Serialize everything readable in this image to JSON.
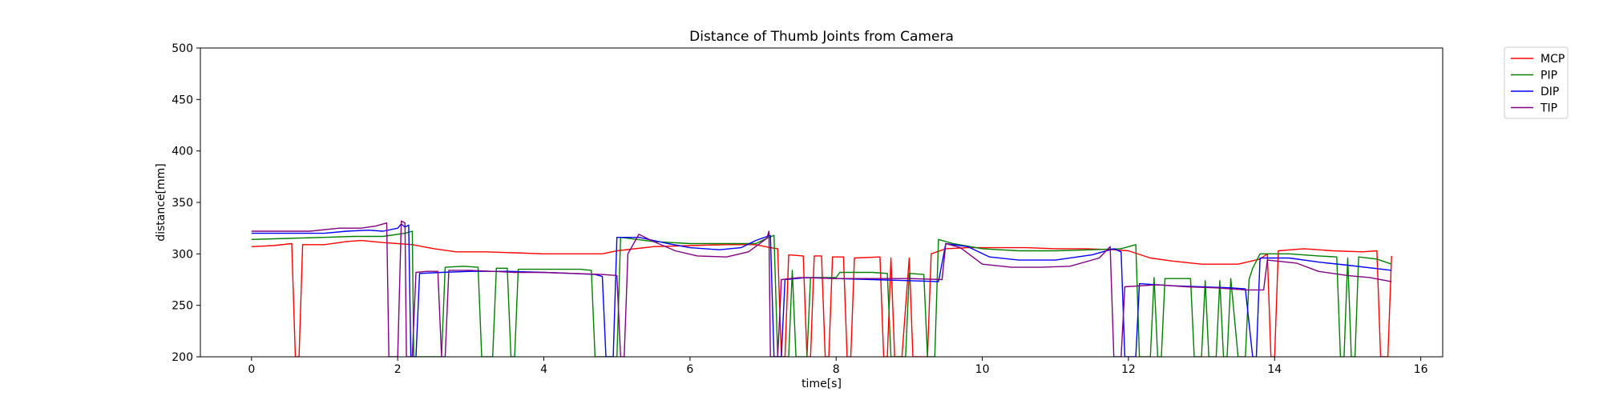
{
  "chart_data": {
    "type": "line",
    "title": "Distance of Thumb Joints from Camera",
    "xlabel": "time[s]",
    "ylabel": "distance[mm]",
    "xlim": [
      -0.7,
      16.3
    ],
    "ylim": [
      200,
      500
    ],
    "xticks": [
      0,
      2,
      4,
      6,
      8,
      10,
      12,
      14,
      16
    ],
    "yticks": [
      200,
      250,
      300,
      350,
      400,
      450,
      500
    ],
    "grid": false,
    "legend_position": "outside-top-right",
    "series": [
      {
        "name": "MCP",
        "color": "#ff0000",
        "points": [
          [
            0,
            307
          ],
          [
            0.3,
            308
          ],
          [
            0.55,
            310
          ],
          [
            0.6,
            200
          ],
          [
            0.65,
            200
          ],
          [
            0.7,
            309
          ],
          [
            1.0,
            309
          ],
          [
            1.3,
            312
          ],
          [
            1.5,
            313
          ],
          [
            1.8,
            311
          ],
          [
            2.0,
            310
          ],
          [
            2.2,
            309
          ],
          [
            2.5,
            305
          ],
          [
            2.8,
            302
          ],
          [
            3.2,
            302
          ],
          [
            3.6,
            301
          ],
          [
            4.0,
            300
          ],
          [
            4.4,
            300
          ],
          [
            4.8,
            300
          ],
          [
            5.0,
            303
          ],
          [
            5.5,
            307
          ],
          [
            6.0,
            308
          ],
          [
            6.5,
            309
          ],
          [
            6.9,
            309
          ],
          [
            7.1,
            306
          ],
          [
            7.2,
            305
          ],
          [
            7.25,
            200
          ],
          [
            7.3,
            200
          ],
          [
            7.35,
            299
          ],
          [
            7.55,
            298
          ],
          [
            7.6,
            200
          ],
          [
            7.65,
            200
          ],
          [
            7.7,
            298
          ],
          [
            7.8,
            298
          ],
          [
            7.85,
            200
          ],
          [
            7.9,
            200
          ],
          [
            7.95,
            297
          ],
          [
            8.1,
            297
          ],
          [
            8.15,
            200
          ],
          [
            8.2,
            200
          ],
          [
            8.25,
            296
          ],
          [
            8.6,
            297
          ],
          [
            8.65,
            200
          ],
          [
            8.7,
            200
          ],
          [
            8.75,
            296
          ],
          [
            8.8,
            200
          ],
          [
            8.9,
            200
          ],
          [
            9.0,
            296
          ],
          [
            9.05,
            200
          ],
          [
            9.25,
            200
          ],
          [
            9.3,
            300
          ],
          [
            9.5,
            305
          ],
          [
            9.8,
            306
          ],
          [
            10.2,
            306
          ],
          [
            10.6,
            306
          ],
          [
            11.0,
            305
          ],
          [
            11.4,
            305
          ],
          [
            11.8,
            304
          ],
          [
            12.0,
            303
          ],
          [
            12.3,
            296
          ],
          [
            12.6,
            293
          ],
          [
            13.0,
            290
          ],
          [
            13.5,
            290
          ],
          [
            13.8,
            295
          ],
          [
            13.9,
            300
          ],
          [
            13.95,
            200
          ],
          [
            14.0,
            200
          ],
          [
            14.05,
            303
          ],
          [
            14.4,
            305
          ],
          [
            14.8,
            303
          ],
          [
            15.2,
            302
          ],
          [
            15.4,
            303
          ],
          [
            15.45,
            200
          ],
          [
            15.55,
            200
          ],
          [
            15.6,
            298
          ]
        ]
      },
      {
        "name": "PIP",
        "color": "#008000",
        "points": [
          [
            0,
            314
          ],
          [
            0.5,
            315
          ],
          [
            1.0,
            316
          ],
          [
            1.4,
            317
          ],
          [
            1.8,
            317
          ],
          [
            2.1,
            320
          ],
          [
            2.2,
            322
          ],
          [
            2.22,
            200
          ],
          [
            2.5,
            200
          ],
          [
            2.6,
            200
          ],
          [
            2.65,
            287
          ],
          [
            2.9,
            288
          ],
          [
            3.1,
            287
          ],
          [
            3.15,
            200
          ],
          [
            3.3,
            200
          ],
          [
            3.35,
            286
          ],
          [
            3.5,
            286
          ],
          [
            3.55,
            200
          ],
          [
            3.6,
            200
          ],
          [
            3.65,
            285
          ],
          [
            4.0,
            285
          ],
          [
            4.5,
            285
          ],
          [
            4.65,
            284
          ],
          [
            4.7,
            200
          ],
          [
            5.0,
            200
          ],
          [
            5.05,
            316
          ],
          [
            5.5,
            312
          ],
          [
            6.0,
            310
          ],
          [
            6.5,
            310
          ],
          [
            6.9,
            310
          ],
          [
            7.05,
            315
          ],
          [
            7.15,
            318
          ],
          [
            7.2,
            200
          ],
          [
            7.35,
            200
          ],
          [
            7.4,
            284
          ],
          [
            7.45,
            200
          ],
          [
            7.6,
            200
          ],
          [
            7.65,
            277
          ],
          [
            8.0,
            277
          ],
          [
            8.05,
            282
          ],
          [
            8.5,
            282
          ],
          [
            8.7,
            281
          ],
          [
            8.75,
            200
          ],
          [
            8.95,
            200
          ],
          [
            9.0,
            281
          ],
          [
            9.2,
            280
          ],
          [
            9.25,
            200
          ],
          [
            9.35,
            200
          ],
          [
            9.4,
            314
          ],
          [
            9.6,
            310
          ],
          [
            10.0,
            305
          ],
          [
            10.5,
            303
          ],
          [
            11.0,
            303
          ],
          [
            11.5,
            304
          ],
          [
            11.9,
            305
          ],
          [
            12.1,
            309
          ],
          [
            12.15,
            200
          ],
          [
            12.3,
            200
          ],
          [
            12.35,
            277
          ],
          [
            12.4,
            200
          ],
          [
            12.45,
            200
          ],
          [
            12.5,
            276
          ],
          [
            12.85,
            276
          ],
          [
            12.9,
            200
          ],
          [
            13.0,
            200
          ],
          [
            13.05,
            274
          ],
          [
            13.1,
            200
          ],
          [
            13.2,
            200
          ],
          [
            13.25,
            274
          ],
          [
            13.3,
            200
          ],
          [
            13.35,
            200
          ],
          [
            13.4,
            276
          ],
          [
            13.5,
            200
          ],
          [
            13.6,
            200
          ],
          [
            13.65,
            275
          ],
          [
            13.7,
            286
          ],
          [
            13.8,
            300
          ],
          [
            14.2,
            300
          ],
          [
            14.6,
            298
          ],
          [
            14.85,
            297
          ],
          [
            14.9,
            200
          ],
          [
            14.95,
            200
          ],
          [
            15.0,
            296
          ],
          [
            15.05,
            200
          ],
          [
            15.1,
            200
          ],
          [
            15.15,
            297
          ],
          [
            15.4,
            295
          ],
          [
            15.6,
            290
          ]
        ]
      },
      {
        "name": "DIP",
        "color": "#0000ff",
        "points": [
          [
            0,
            320
          ],
          [
            0.5,
            320
          ],
          [
            1.0,
            320
          ],
          [
            1.3,
            322
          ],
          [
            1.6,
            323
          ],
          [
            1.8,
            322
          ],
          [
            2.0,
            325
          ],
          [
            2.05,
            329
          ],
          [
            2.1,
            326
          ],
          [
            2.15,
            328
          ],
          [
            2.18,
            200
          ],
          [
            2.25,
            200
          ],
          [
            2.3,
            281
          ],
          [
            2.6,
            282
          ],
          [
            3.0,
            283
          ],
          [
            3.5,
            283
          ],
          [
            4.0,
            282
          ],
          [
            4.4,
            281
          ],
          [
            4.7,
            280
          ],
          [
            4.8,
            278
          ],
          [
            4.85,
            200
          ],
          [
            4.95,
            200
          ],
          [
            5.0,
            316
          ],
          [
            5.3,
            316
          ],
          [
            5.7,
            310
          ],
          [
            6.0,
            306
          ],
          [
            6.4,
            304
          ],
          [
            6.7,
            306
          ],
          [
            6.9,
            313
          ],
          [
            7.1,
            318
          ],
          [
            7.15,
            200
          ],
          [
            7.25,
            200
          ],
          [
            7.3,
            275
          ],
          [
            7.6,
            277
          ],
          [
            8.0,
            276
          ],
          [
            8.5,
            275
          ],
          [
            9.0,
            274
          ],
          [
            9.4,
            273
          ],
          [
            9.5,
            310
          ],
          [
            9.8,
            307
          ],
          [
            10.1,
            297
          ],
          [
            10.5,
            294
          ],
          [
            11.0,
            294
          ],
          [
            11.5,
            299
          ],
          [
            11.8,
            305
          ],
          [
            11.9,
            302
          ],
          [
            11.95,
            200
          ],
          [
            12.1,
            200
          ],
          [
            12.15,
            271
          ],
          [
            12.6,
            269
          ],
          [
            13.0,
            268
          ],
          [
            13.4,
            267
          ],
          [
            13.6,
            266
          ],
          [
            13.7,
            200
          ],
          [
            13.75,
            200
          ],
          [
            13.8,
            296
          ],
          [
            14.2,
            296
          ],
          [
            14.6,
            292
          ],
          [
            15.0,
            289
          ],
          [
            15.6,
            284
          ]
        ]
      },
      {
        "name": "TIP",
        "color": "#800080",
        "points": [
          [
            0,
            322
          ],
          [
            0.3,
            322
          ],
          [
            0.8,
            322
          ],
          [
            1.2,
            325
          ],
          [
            1.5,
            325
          ],
          [
            1.7,
            327
          ],
          [
            1.85,
            330
          ],
          [
            1.88,
            200
          ],
          [
            2.0,
            200
          ],
          [
            2.05,
            332
          ],
          [
            2.1,
            330
          ],
          [
            2.12,
            200
          ],
          [
            2.2,
            200
          ],
          [
            2.25,
            282
          ],
          [
            2.4,
            283
          ],
          [
            2.55,
            283
          ],
          [
            2.6,
            200
          ],
          [
            2.65,
            200
          ],
          [
            2.7,
            284
          ],
          [
            3.0,
            284
          ],
          [
            3.3,
            283
          ],
          [
            3.6,
            282
          ],
          [
            4.0,
            282
          ],
          [
            4.4,
            281
          ],
          [
            4.8,
            280
          ],
          [
            5.0,
            279
          ],
          [
            5.05,
            200
          ],
          [
            5.1,
            200
          ],
          [
            5.15,
            300
          ],
          [
            5.3,
            319
          ],
          [
            5.5,
            312
          ],
          [
            5.8,
            303
          ],
          [
            6.1,
            298
          ],
          [
            6.5,
            297
          ],
          [
            6.8,
            302
          ],
          [
            7.05,
            315
          ],
          [
            7.08,
            322
          ],
          [
            7.1,
            200
          ],
          [
            7.2,
            200
          ],
          [
            7.25,
            275
          ],
          [
            7.5,
            277
          ],
          [
            8.0,
            276
          ],
          [
            8.5,
            276
          ],
          [
            9.0,
            276
          ],
          [
            9.45,
            275
          ],
          [
            9.5,
            310
          ],
          [
            9.7,
            306
          ],
          [
            10.0,
            290
          ],
          [
            10.4,
            287
          ],
          [
            10.8,
            287
          ],
          [
            11.2,
            288
          ],
          [
            11.6,
            296
          ],
          [
            11.75,
            307
          ],
          [
            11.8,
            200
          ],
          [
            11.9,
            200
          ],
          [
            11.95,
            268
          ],
          [
            12.4,
            270
          ],
          [
            12.8,
            268
          ],
          [
            13.2,
            267
          ],
          [
            13.6,
            265
          ],
          [
            13.85,
            265
          ],
          [
            13.9,
            294
          ],
          [
            14.3,
            291
          ],
          [
            14.6,
            283
          ],
          [
            15.0,
            279
          ],
          [
            15.3,
            277
          ],
          [
            15.6,
            273
          ]
        ]
      }
    ]
  }
}
